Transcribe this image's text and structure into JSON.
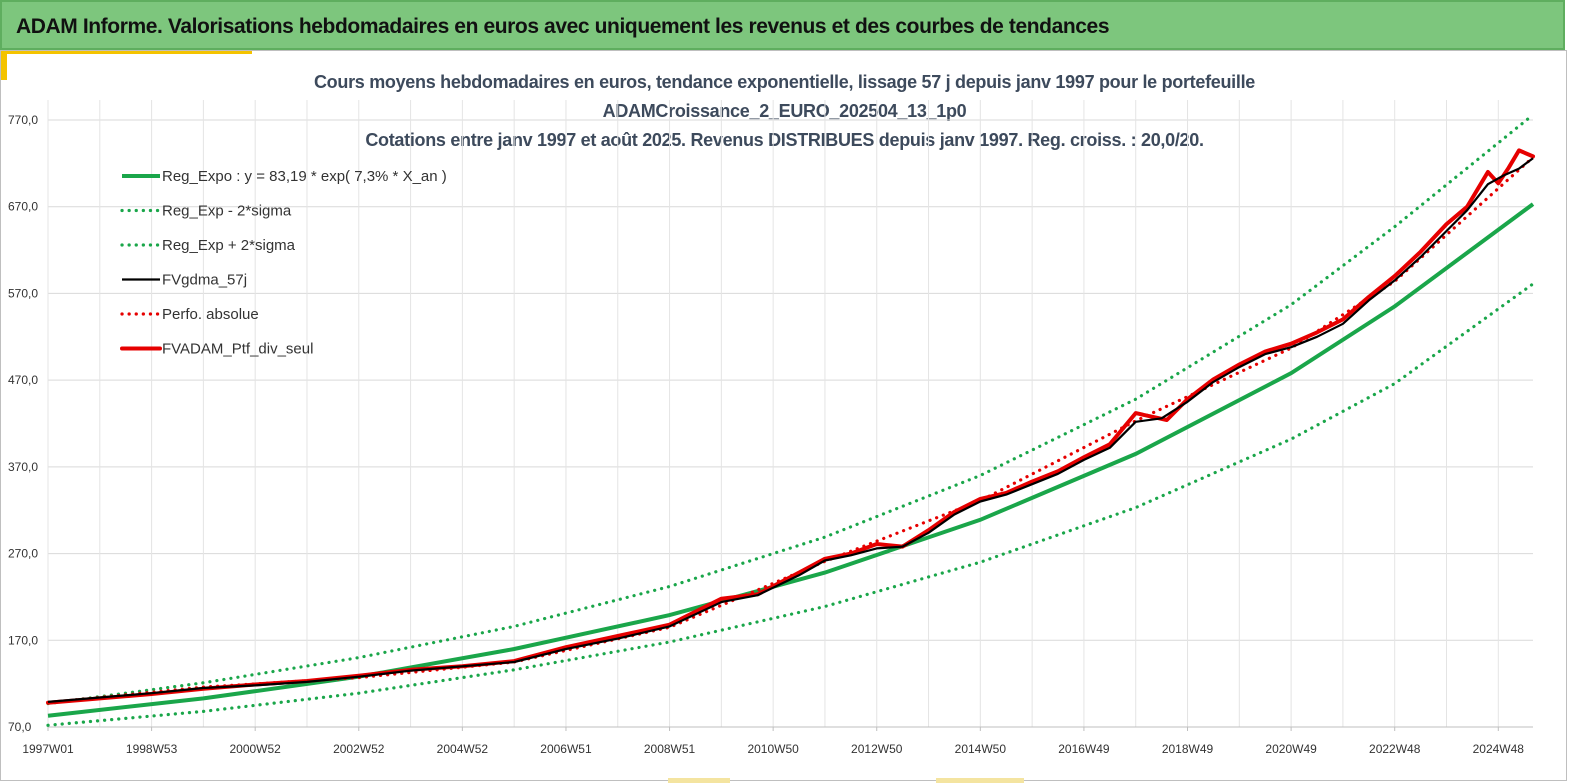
{
  "header": {
    "title": "ADAM Informe. Valorisations hebdomadaires en euros avec uniquement les revenus et des courbes de tendances"
  },
  "colors": {
    "header_bg": "#7dc67d",
    "accent": "#f4c300",
    "trend": "#1aa64a",
    "smoothed": "#000000",
    "portfolio": "#e60000"
  },
  "chart_data": {
    "type": "line",
    "title_lines": [
      "Cours moyens hebdomadaires  en euros, tendance exponentielle, lissage 57 j depuis janv 1997 pour le portefeuille",
      "ADAMCroissance_2_EURO_202504_13_1p0",
      "Cotations  entre janv 1997 et août  2025. Revenus DISTRIBUES depuis janv 1997. Reg. croiss. : 20,0/20."
    ],
    "xlabel": "",
    "ylabel": "",
    "ylim": [
      70,
      790
    ],
    "y_ticks": [
      770,
      670,
      570,
      470,
      370,
      270,
      170,
      70
    ],
    "y_tick_labels": [
      "770,0",
      "670,0",
      "570,0",
      "470,0",
      "370,0",
      "270,0",
      "170,0",
      "70,0"
    ],
    "xlim": [
      1997.0,
      2025.67
    ],
    "x_ticks": [
      1997.0,
      1999.0,
      2001.0,
      2003.0,
      2005.0,
      2007.0,
      2009.0,
      2011.0,
      2013.0,
      2015.0,
      2017.0,
      2019.0,
      2021.0,
      2023.0,
      2025.0
    ],
    "x_tick_labels": [
      "1997W01",
      "1998W53",
      "2000W52",
      "2002W52",
      "2004W52",
      "2006W51",
      "2008W51",
      "2010W50",
      "2012W50",
      "2014W50",
      "2016W49",
      "2018W49",
      "2020W49",
      "2022W48",
      "2024W48"
    ],
    "grid": true,
    "legend_position": "top-left",
    "series": [
      {
        "name": "Reg_Expo : y = 83,19 * exp( 7,3% *  X_an )",
        "style": "solid",
        "color": "#1aa64a",
        "x": [
          1997.0,
          2000.0,
          2003.0,
          2006.0,
          2009.0,
          2012.0,
          2015.0,
          2018.0,
          2021.0,
          2023.0,
          2025.67
        ],
        "values": [
          83,
          103,
          128,
          160,
          199,
          248,
          309,
          385,
          478,
          555,
          673
        ]
      },
      {
        "name": "Reg_Exp - 2*sigma",
        "style": "dotted",
        "color": "#1aa64a",
        "x": [
          1997.0,
          2000.0,
          2003.0,
          2006.0,
          2009.0,
          2012.0,
          2015.0,
          2018.0,
          2021.0,
          2023.0,
          2025.67
        ],
        "values": [
          72,
          88,
          109,
          136,
          168,
          209,
          260,
          323,
          402,
          466,
          581
        ]
      },
      {
        "name": "Reg_Exp + 2*sigma",
        "style": "dotted",
        "color": "#1aa64a",
        "x": [
          1997.0,
          2000.0,
          2003.0,
          2006.0,
          2009.0,
          2012.0,
          2015.0,
          2018.0,
          2021.0,
          2023.0,
          2025.67
        ],
        "values": [
          97,
          121,
          150,
          186,
          232,
          289,
          360,
          448,
          557,
          647,
          776
        ]
      },
      {
        "name": "FVgdma_57j",
        "style": "solid",
        "color": "#000000",
        "x": [
          1997.0,
          1998.0,
          1999.0,
          2000.0,
          2001.0,
          2002.0,
          2003.0,
          2004.0,
          2005.0,
          2006.0,
          2007.0,
          2008.0,
          2009.0,
          2010.0,
          2010.7,
          2011.5,
          2012.0,
          2012.5,
          2013.0,
          2013.5,
          2014.0,
          2014.5,
          2015.0,
          2015.5,
          2016.0,
          2016.5,
          2017.0,
          2017.5,
          2018.0,
          2018.5,
          2019.0,
          2019.5,
          2020.0,
          2020.5,
          2021.0,
          2021.5,
          2022.0,
          2022.5,
          2023.0,
          2023.5,
          2024.0,
          2024.4,
          2024.8,
          2025.1,
          2025.4,
          2025.67
        ],
        "values": [
          99,
          104,
          109,
          115,
          118,
          122,
          128,
          135,
          140,
          145,
          160,
          172,
          186,
          214,
          222,
          245,
          262,
          268,
          276,
          278,
          294,
          315,
          330,
          338,
          350,
          362,
          378,
          392,
          422,
          426,
          445,
          468,
          485,
          500,
          508,
          520,
          535,
          562,
          585,
          612,
          642,
          666,
          696,
          706,
          714,
          726
        ]
      },
      {
        "name": "Perfo. absolue",
        "style": "dotted",
        "color": "#e60000",
        "x": [
          1997.0,
          2000.0,
          2003.0,
          2006.0,
          2009.0,
          2012.0,
          2015.0,
          2018.0,
          2021.0,
          2023.0,
          2025.67
        ],
        "values": [
          98,
          116,
          127,
          145,
          185,
          261,
          331,
          423,
          507,
          584,
          727
        ]
      },
      {
        "name": "FVADAM_Ptf_div_seul",
        "style": "solid",
        "color": "#e60000",
        "x": [
          1997.0,
          1998.0,
          1999.0,
          2000.0,
          2001.0,
          2002.0,
          2003.0,
          2004.0,
          2005.0,
          2006.0,
          2007.0,
          2008.0,
          2009.0,
          2010.0,
          2010.7,
          2011.5,
          2012.0,
          2012.5,
          2013.0,
          2013.5,
          2014.0,
          2014.5,
          2015.0,
          2015.5,
          2016.0,
          2016.5,
          2017.0,
          2017.5,
          2018.0,
          2018.3,
          2018.6,
          2019.0,
          2019.5,
          2020.0,
          2020.5,
          2021.0,
          2021.5,
          2022.0,
          2022.5,
          2023.0,
          2023.5,
          2024.0,
          2024.4,
          2024.8,
          2025.0,
          2025.2,
          2025.4,
          2025.67
        ],
        "values": [
          98,
          103,
          108,
          114,
          119,
          123,
          129,
          136,
          140,
          146,
          162,
          175,
          188,
          218,
          223,
          248,
          264,
          270,
          281,
          278,
          297,
          318,
          333,
          340,
          353,
          365,
          381,
          396,
          432,
          428,
          424,
          448,
          471,
          488,
          503,
          512,
          525,
          540,
          566,
          590,
          618,
          650,
          670,
          710,
          697,
          715,
          735,
          728
        ]
      }
    ]
  }
}
